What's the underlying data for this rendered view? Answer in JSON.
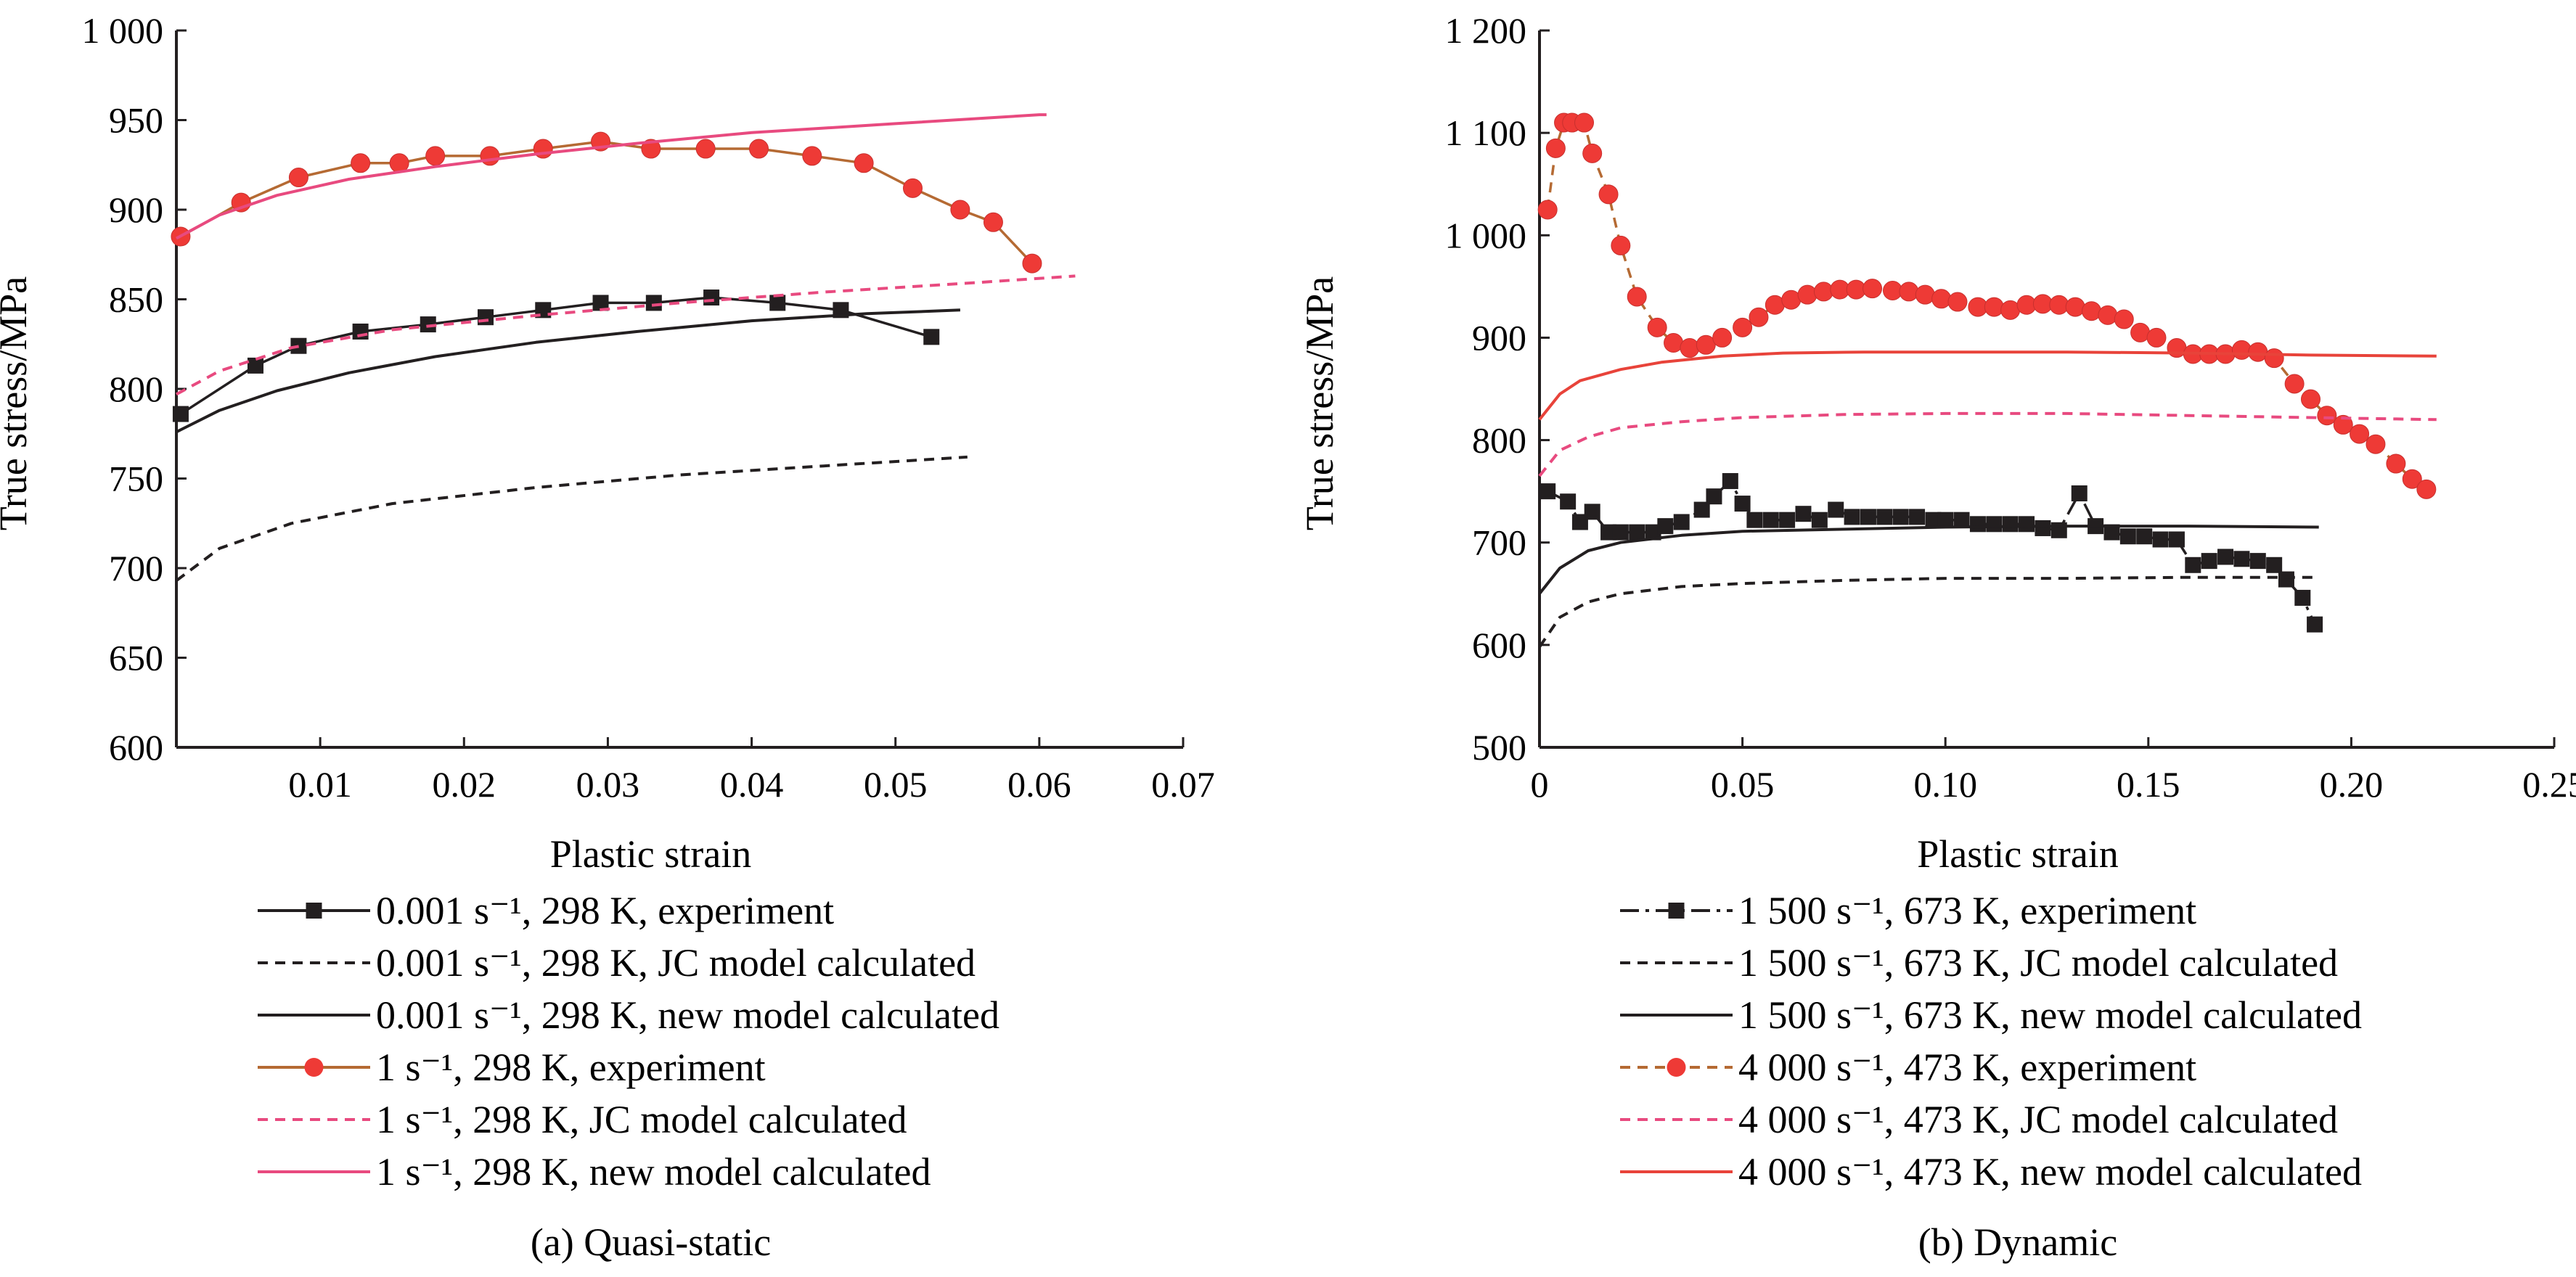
{
  "chart_data": [
    {
      "type": "line",
      "caption": "(a) Quasi-static",
      "xlabel": "Plastic strain",
      "ylabel": "True stress/MPa",
      "xlim": [
        0,
        0.07
      ],
      "ylim": [
        600,
        1000
      ],
      "x_ticks": [
        0.01,
        0.02,
        0.03,
        0.04,
        0.05,
        0.06,
        0.07
      ],
      "x_tick_labels": [
        "0.01",
        "0.02",
        "0.03",
        "0.04",
        "0.05",
        "0.06",
        "0.07"
      ],
      "y_ticks": [
        600,
        650,
        700,
        750,
        800,
        850,
        900,
        950,
        1000
      ],
      "y_tick_labels": [
        "600",
        "650",
        "700",
        "750",
        "800",
        "850",
        "900",
        "950",
        "1 000"
      ],
      "legend_position": "below",
      "series": [
        {
          "name": "0.001 s⁻¹, 298 K, experiment",
          "color": "#231f20",
          "marker": "square",
          "line": "solid",
          "points": [
            [
              0.0003,
              786
            ],
            [
              0.0055,
              813
            ],
            [
              0.0085,
              824
            ],
            [
              0.0128,
              832
            ],
            [
              0.0175,
              836
            ],
            [
              0.0215,
              840
            ],
            [
              0.0255,
              844
            ],
            [
              0.0295,
              848
            ],
            [
              0.0332,
              848
            ],
            [
              0.0372,
              851
            ],
            [
              0.0418,
              848
            ],
            [
              0.0462,
              844
            ],
            [
              0.0525,
              829
            ]
          ]
        },
        {
          "name": "0.001 s⁻¹, 298 K, JC model calculated",
          "color": "#231f20",
          "marker": "none",
          "line": "dashed",
          "points": [
            [
              0,
              693
            ],
            [
              0.003,
              711
            ],
            [
              0.008,
              725
            ],
            [
              0.015,
              736
            ],
            [
              0.025,
              745
            ],
            [
              0.035,
              752
            ],
            [
              0.045,
              757
            ],
            [
              0.055,
              762
            ]
          ]
        },
        {
          "name": "0.001 s⁻¹, 298 K, new model calculated",
          "color": "#231f20",
          "marker": "none",
          "line": "solid",
          "points": [
            [
              0,
              776
            ],
            [
              0.003,
              788
            ],
            [
              0.007,
              799
            ],
            [
              0.012,
              809
            ],
            [
              0.018,
              818
            ],
            [
              0.025,
              826
            ],
            [
              0.032,
              832
            ],
            [
              0.04,
              838
            ],
            [
              0.048,
              842
            ],
            [
              0.0545,
              844
            ]
          ]
        },
        {
          "name": "1 s⁻¹, 298 K, experiment",
          "color": "#ee3a36",
          "marker": "circle",
          "line": "solid",
          "line_color": "#b56a33",
          "points": [
            [
              0.0003,
              885
            ],
            [
              0.0045,
              904
            ],
            [
              0.0085,
              918
            ],
            [
              0.0128,
              926
            ],
            [
              0.0155,
              926
            ],
            [
              0.018,
              930
            ],
            [
              0.0218,
              930
            ],
            [
              0.0255,
              934
            ],
            [
              0.0295,
              938
            ],
            [
              0.033,
              934
            ],
            [
              0.0368,
              934
            ],
            [
              0.0405,
              934
            ],
            [
              0.0442,
              930
            ],
            [
              0.0478,
              926
            ],
            [
              0.0512,
              912
            ],
            [
              0.0545,
              900
            ],
            [
              0.0568,
              893
            ],
            [
              0.0595,
              870
            ]
          ]
        },
        {
          "name": "1 s⁻¹, 298 K, JC model calculated",
          "color": "#e84a7f",
          "marker": "none",
          "line": "dashed",
          "points": [
            [
              0,
              797
            ],
            [
              0.003,
              810
            ],
            [
              0.008,
              823
            ],
            [
              0.015,
              833
            ],
            [
              0.025,
              841
            ],
            [
              0.035,
              848
            ],
            [
              0.045,
              854
            ],
            [
              0.055,
              859
            ],
            [
              0.0625,
              863
            ]
          ]
        },
        {
          "name": "1 s⁻¹, 298 K, new model calculated",
          "color": "#e84a7f",
          "marker": "none",
          "line": "solid",
          "points": [
            [
              0,
              884
            ],
            [
              0.003,
              897
            ],
            [
              0.007,
              908
            ],
            [
              0.012,
              917
            ],
            [
              0.018,
              924
            ],
            [
              0.025,
              931
            ],
            [
              0.032,
              937
            ],
            [
              0.04,
              943
            ],
            [
              0.05,
              948
            ],
            [
              0.06,
              953
            ],
            [
              0.0605,
              953
            ]
          ]
        }
      ]
    },
    {
      "type": "line",
      "caption": "(b) Dynamic",
      "xlabel": "Plastic strain",
      "ylabel": "True stress/MPa",
      "xlim": [
        0,
        0.25
      ],
      "ylim": [
        500,
        1200
      ],
      "x_ticks": [
        0,
        0.05,
        0.1,
        0.15,
        0.2,
        0.25
      ],
      "x_tick_labels": [
        "0",
        "0.05",
        "0.10",
        "0.15",
        "0.20",
        "0.25"
      ],
      "y_ticks": [
        500,
        600,
        700,
        800,
        900,
        1000,
        1100,
        1200
      ],
      "y_tick_labels": [
        "500",
        "600",
        "700",
        "800",
        "900",
        "1 000",
        "1 100",
        "1 200"
      ],
      "legend_position": "below",
      "series": [
        {
          "name": "1 500 s⁻¹, 673 K, experiment",
          "color": "#231f20",
          "marker": "square",
          "line": "dashdot",
          "points": [
            [
              0.002,
              750
            ],
            [
              0.007,
              740
            ],
            [
              0.01,
              720
            ],
            [
              0.013,
              730
            ],
            [
              0.017,
              710
            ],
            [
              0.02,
              710
            ],
            [
              0.024,
              710
            ],
            [
              0.028,
              710
            ],
            [
              0.031,
              716
            ],
            [
              0.035,
              720
            ],
            [
              0.04,
              732
            ],
            [
              0.043,
              745
            ],
            [
              0.047,
              760
            ],
            [
              0.05,
              738
            ],
            [
              0.053,
              722
            ],
            [
              0.057,
              722
            ],
            [
              0.061,
              722
            ],
            [
              0.065,
              728
            ],
            [
              0.069,
              722
            ],
            [
              0.073,
              732
            ],
            [
              0.077,
              725
            ],
            [
              0.081,
              725
            ],
            [
              0.085,
              725
            ],
            [
              0.089,
              725
            ],
            [
              0.093,
              725
            ],
            [
              0.097,
              722
            ],
            [
              0.1,
              722
            ],
            [
              0.104,
              722
            ],
            [
              0.108,
              718
            ],
            [
              0.112,
              718
            ],
            [
              0.116,
              718
            ],
            [
              0.12,
              718
            ],
            [
              0.124,
              714
            ],
            [
              0.128,
              712
            ],
            [
              0.133,
              748
            ],
            [
              0.137,
              716
            ],
            [
              0.141,
              710
            ],
            [
              0.145,
              706
            ],
            [
              0.149,
              706
            ],
            [
              0.153,
              703
            ],
            [
              0.157,
              703
            ],
            [
              0.161,
              678
            ],
            [
              0.165,
              682
            ],
            [
              0.169,
              686
            ],
            [
              0.173,
              684
            ],
            [
              0.177,
              682
            ],
            [
              0.181,
              678
            ],
            [
              0.184,
              664
            ],
            [
              0.188,
              646
            ],
            [
              0.191,
              620
            ]
          ]
        },
        {
          "name": "1 500 s⁻¹, 673 K, JC model calculated",
          "color": "#231f20",
          "marker": "none",
          "line": "dashed",
          "points": [
            [
              0,
              598
            ],
            [
              0.005,
              627
            ],
            [
              0.012,
              642
            ],
            [
              0.02,
              650
            ],
            [
              0.035,
              657
            ],
            [
              0.05,
              660
            ],
            [
              0.075,
              663
            ],
            [
              0.1,
              665
            ],
            [
              0.13,
              665
            ],
            [
              0.16,
              666
            ],
            [
              0.192,
              666
            ]
          ]
        },
        {
          "name": "1 500 s⁻¹, 673 K, new model calculated",
          "color": "#231f20",
          "marker": "none",
          "line": "solid",
          "points": [
            [
              0,
              650
            ],
            [
              0.005,
              675
            ],
            [
              0.012,
              692
            ],
            [
              0.02,
              700
            ],
            [
              0.035,
              707
            ],
            [
              0.05,
              711
            ],
            [
              0.075,
              713
            ],
            [
              0.1,
              715
            ],
            [
              0.13,
              716
            ],
            [
              0.16,
              716
            ],
            [
              0.192,
              715
            ]
          ]
        },
        {
          "name": "4 000 s⁻¹, 473 K, experiment",
          "color": "#ee3a36",
          "marker": "circle",
          "line": "dashed",
          "line_color": "#b56a33",
          "points": [
            [
              0.002,
              1025
            ],
            [
              0.004,
              1085
            ],
            [
              0.006,
              1110
            ],
            [
              0.008,
              1110
            ],
            [
              0.011,
              1110
            ],
            [
              0.013,
              1080
            ],
            [
              0.017,
              1040
            ],
            [
              0.02,
              990
            ],
            [
              0.024,
              940
            ],
            [
              0.029,
              910
            ],
            [
              0.033,
              895
            ],
            [
              0.037,
              890
            ],
            [
              0.041,
              893
            ],
            [
              0.045,
              900
            ],
            [
              0.05,
              910
            ],
            [
              0.054,
              920
            ],
            [
              0.058,
              932
            ],
            [
              0.062,
              937
            ],
            [
              0.066,
              942
            ],
            [
              0.07,
              945
            ],
            [
              0.074,
              947
            ],
            [
              0.078,
              947
            ],
            [
              0.082,
              948
            ],
            [
              0.087,
              946
            ],
            [
              0.091,
              945
            ],
            [
              0.095,
              942
            ],
            [
              0.099,
              938
            ],
            [
              0.103,
              935
            ],
            [
              0.108,
              930
            ],
            [
              0.112,
              930
            ],
            [
              0.116,
              927
            ],
            [
              0.12,
              932
            ],
            [
              0.124,
              933
            ],
            [
              0.128,
              932
            ],
            [
              0.132,
              930
            ],
            [
              0.136,
              926
            ],
            [
              0.14,
              922
            ],
            [
              0.144,
              918
            ],
            [
              0.148,
              905
            ],
            [
              0.152,
              900
            ],
            [
              0.157,
              890
            ],
            [
              0.161,
              884
            ],
            [
              0.165,
              884
            ],
            [
              0.169,
              884
            ],
            [
              0.173,
              888
            ],
            [
              0.177,
              886
            ],
            [
              0.181,
              880
            ],
            [
              0.186,
              855
            ],
            [
              0.19,
              840
            ],
            [
              0.194,
              824
            ],
            [
              0.198,
              815
            ],
            [
              0.202,
              806
            ],
            [
              0.206,
              796
            ],
            [
              0.211,
              777
            ],
            [
              0.215,
              762
            ],
            [
              0.2185,
              752
            ]
          ]
        },
        {
          "name": "4 000 s⁻¹, 473 K, JC model calculated",
          "color": "#e84a7f",
          "marker": "none",
          "line": "dashed",
          "points": [
            [
              0,
              765
            ],
            [
              0.005,
              790
            ],
            [
              0.012,
              803
            ],
            [
              0.02,
              812
            ],
            [
              0.035,
              818
            ],
            [
              0.05,
              822
            ],
            [
              0.075,
              825
            ],
            [
              0.1,
              826
            ],
            [
              0.13,
              826
            ],
            [
              0.16,
              824
            ],
            [
              0.19,
              822
            ],
            [
              0.221,
              820
            ]
          ]
        },
        {
          "name": "4 000 s⁻¹, 473 K, new model calculated",
          "color": "#e8433a",
          "marker": "none",
          "line": "solid",
          "points": [
            [
              0,
              820
            ],
            [
              0.005,
              845
            ],
            [
              0.01,
              858
            ],
            [
              0.02,
              869
            ],
            [
              0.03,
              876
            ],
            [
              0.045,
              882
            ],
            [
              0.06,
              885
            ],
            [
              0.08,
              886
            ],
            [
              0.1,
              886
            ],
            [
              0.13,
              886
            ],
            [
              0.16,
              885
            ],
            [
              0.19,
              883
            ],
            [
              0.221,
              882
            ]
          ]
        }
      ]
    }
  ]
}
